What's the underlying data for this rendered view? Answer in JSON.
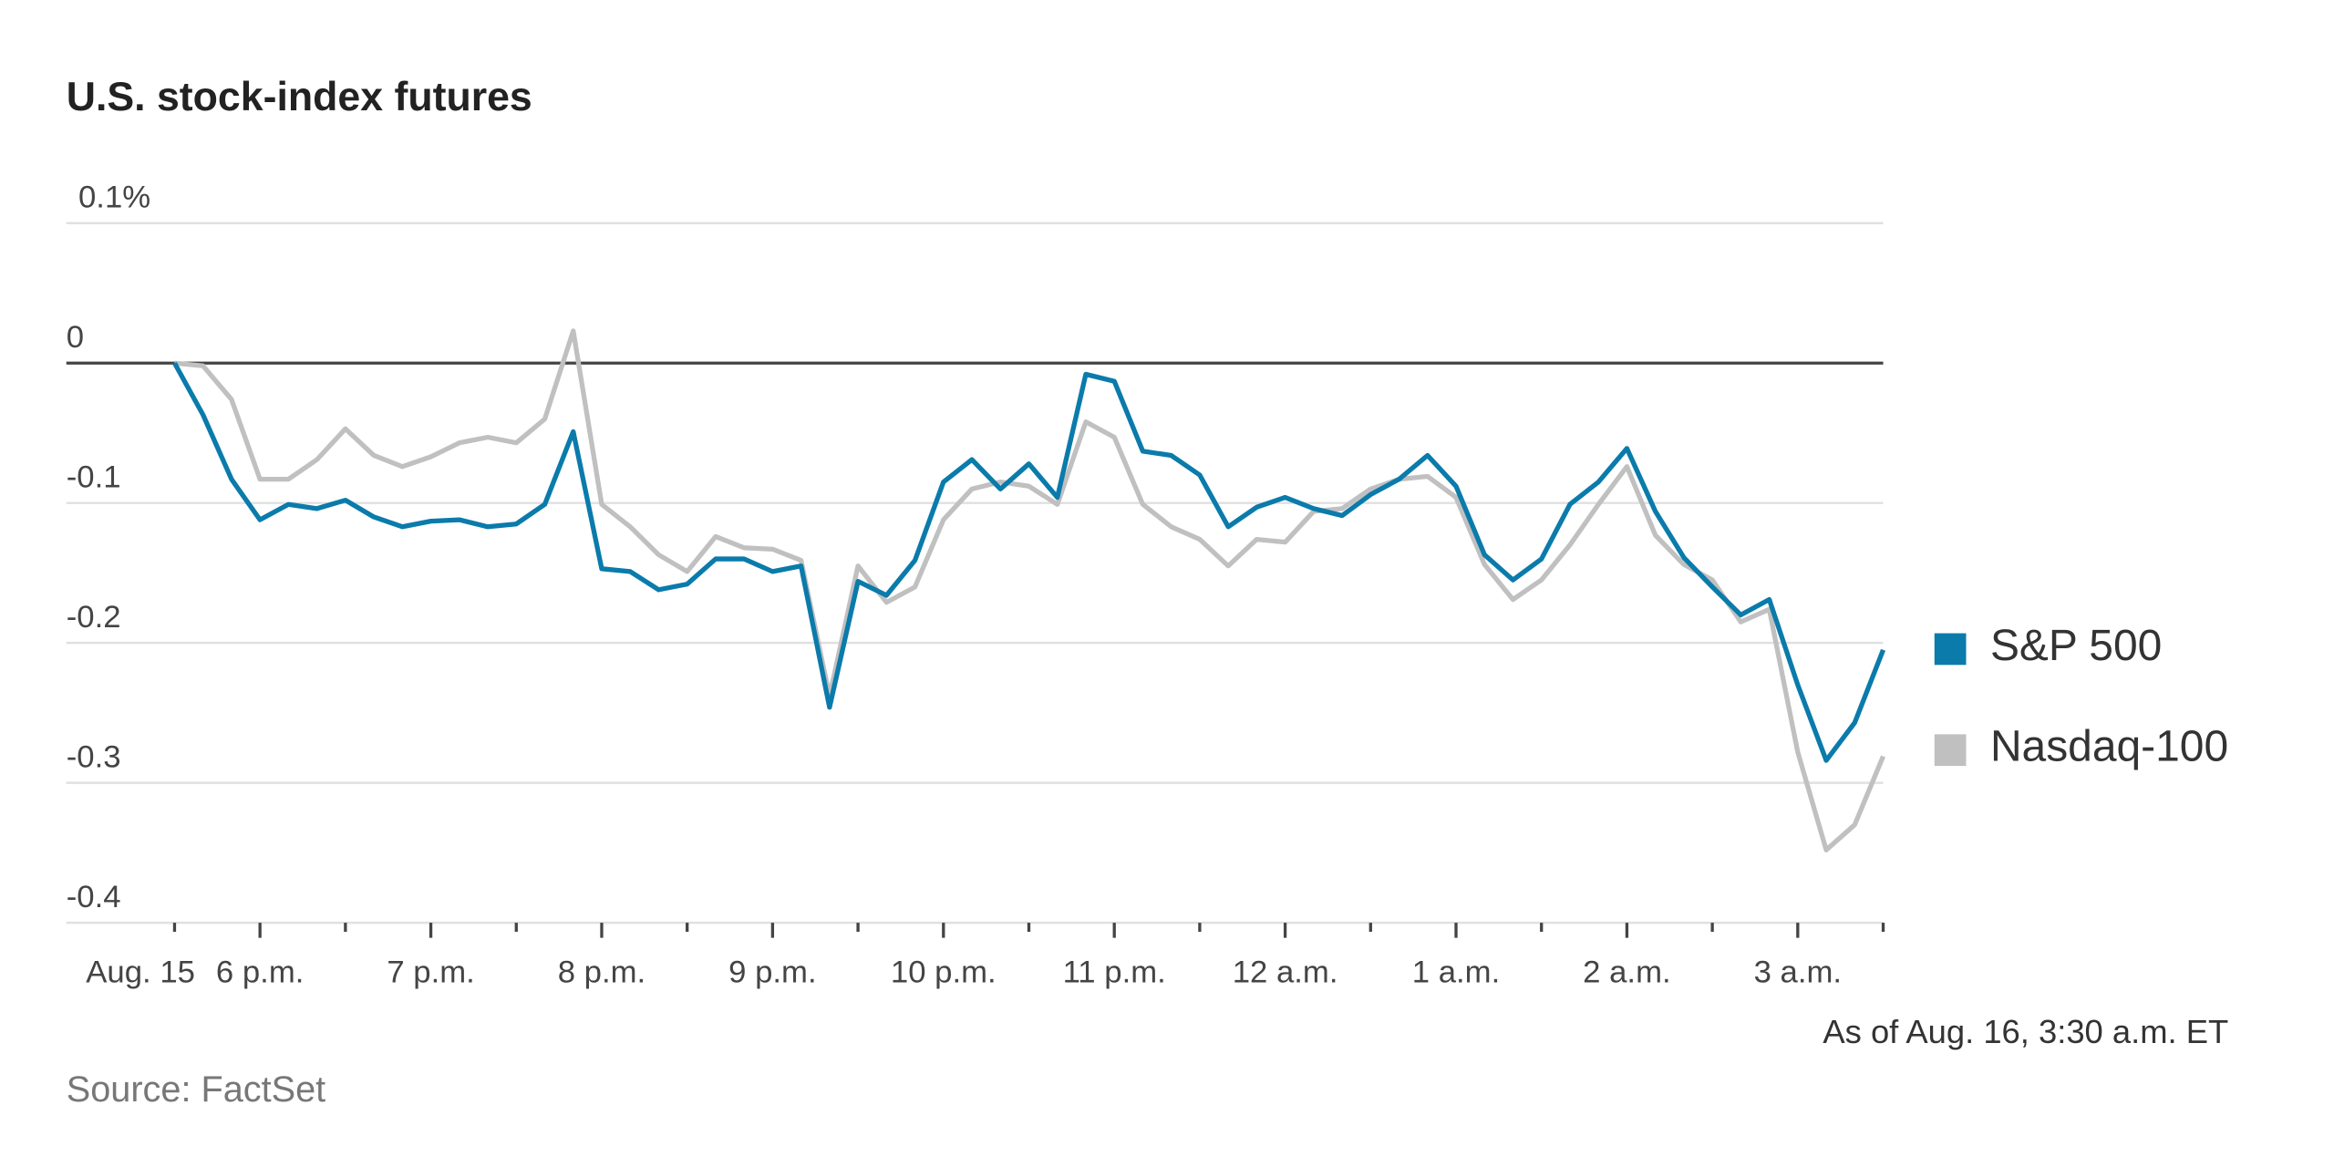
{
  "chart_data": {
    "type": "line",
    "title": "U.S. stock-index futures",
    "x_start_label": "Aug. 15",
    "annotation": "As of Aug. 16, 3:30 a.m. ET",
    "source": "Source: FactSet",
    "x": [
      1050,
      1060,
      1070,
      1080,
      1090,
      1100,
      1110,
      1120,
      1130,
      1140,
      1150,
      1160,
      1170,
      1180,
      1190,
      1200,
      1210,
      1220,
      1230,
      1240,
      1250,
      1260,
      1270,
      1280,
      1290,
      1300,
      1310,
      1320,
      1330,
      1340,
      1350,
      1360,
      1370,
      1380,
      1390,
      1400,
      1410,
      1420,
      1430,
      1440,
      1450,
      1460,
      1470,
      1480,
      1490,
      1500,
      1510,
      1520,
      1530,
      1540,
      1550,
      1560,
      1570,
      1580,
      1590,
      1600,
      1610,
      1620,
      1630,
      1640,
      1650
    ],
    "series": [
      {
        "name": "S&P 500",
        "color": "#0a7bab",
        "values": [
          0,
          -0.037,
          -0.083,
          -0.112,
          -0.101,
          -0.104,
          -0.098,
          -0.11,
          -0.117,
          -0.113,
          -0.112,
          -0.117,
          -0.115,
          -0.101,
          -0.049,
          -0.147,
          -0.149,
          -0.162,
          -0.158,
          -0.14,
          -0.14,
          -0.149,
          -0.145,
          -0.246,
          -0.156,
          -0.166,
          -0.141,
          -0.085,
          -0.069,
          -0.09,
          -0.072,
          -0.096,
          -0.008,
          -0.013,
          -0.063,
          -0.066,
          -0.08,
          -0.117,
          -0.103,
          -0.096,
          -0.104,
          -0.109,
          -0.094,
          -0.083,
          -0.066,
          -0.088,
          -0.137,
          -0.155,
          -0.14,
          -0.101,
          -0.085,
          -0.061,
          -0.106,
          -0.139,
          -0.16,
          -0.18,
          -0.169,
          -0.23,
          -0.284,
          -0.257,
          -0.205
        ]
      },
      {
        "name": "Nasdaq-100",
        "color": "#c0c0c0",
        "values": [
          0,
          -0.002,
          -0.026,
          -0.083,
          -0.083,
          -0.069,
          -0.047,
          -0.066,
          -0.074,
          -0.067,
          -0.057,
          -0.053,
          -0.057,
          -0.04,
          0.023,
          -0.101,
          -0.117,
          -0.137,
          -0.149,
          -0.124,
          -0.132,
          -0.133,
          -0.141,
          -0.238,
          -0.145,
          -0.171,
          -0.16,
          -0.112,
          -0.09,
          -0.085,
          -0.088,
          -0.101,
          -0.042,
          -0.053,
          -0.101,
          -0.117,
          -0.126,
          -0.145,
          -0.126,
          -0.128,
          -0.106,
          -0.104,
          -0.09,
          -0.083,
          -0.081,
          -0.096,
          -0.144,
          -0.169,
          -0.155,
          -0.13,
          -0.101,
          -0.074,
          -0.123,
          -0.144,
          -0.155,
          -0.185,
          -0.176,
          -0.278,
          -0.348,
          -0.33,
          -0.281
        ]
      }
    ],
    "xlim": [
      1012,
      1650
    ],
    "xticks": [
      {
        "value": 1080,
        "label": "6 p.m."
      },
      {
        "value": 1140,
        "label": "7 p.m."
      },
      {
        "value": 1200,
        "label": "8 p.m."
      },
      {
        "value": 1260,
        "label": "9 p.m."
      },
      {
        "value": 1320,
        "label": "10 p.m."
      },
      {
        "value": 1380,
        "label": "11 p.m."
      },
      {
        "value": 1440,
        "label": "12 a.m."
      },
      {
        "value": 1500,
        "label": "1 a.m."
      },
      {
        "value": 1560,
        "label": "2 a.m."
      },
      {
        "value": 1620,
        "label": "3 a.m."
      }
    ],
    "xminor_ticks": [
      1050,
      1110,
      1170,
      1230,
      1290,
      1350,
      1410,
      1470,
      1530,
      1590,
      1650
    ],
    "ylim": [
      -0.4,
      0.1
    ],
    "yticks": [
      {
        "value": 0.1,
        "label": "0.1%"
      },
      0,
      -0.1,
      -0.2,
      -0.3,
      -0.4
    ],
    "grid": true,
    "legend": "right"
  }
}
